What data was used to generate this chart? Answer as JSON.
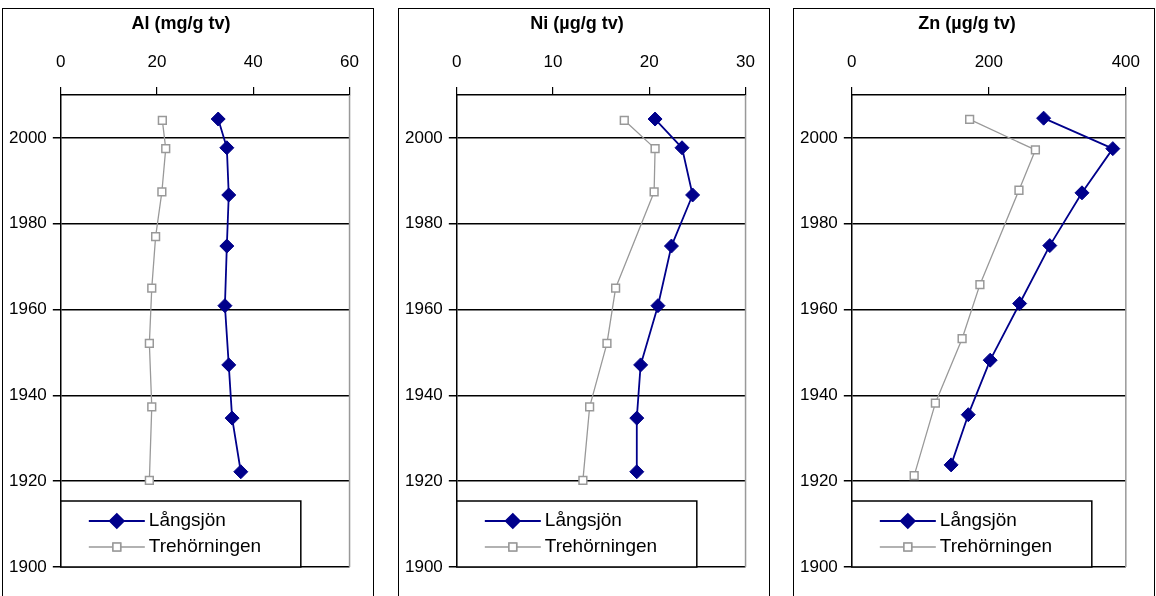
{
  "chart_data": [
    {
      "type": "line",
      "title": "Al (mg/g tv)",
      "xlim": [
        0,
        60
      ],
      "xticks": [
        0,
        20,
        40,
        60
      ],
      "ylim": [
        1900,
        2010
      ],
      "yticks": [
        1900,
        1920,
        1940,
        1960,
        1980,
        2000
      ],
      "grid": "y",
      "legend": "bottom left",
      "line_style": "solid",
      "series": [
        {
          "name": "Långsjön",
          "color": "#00008b",
          "marker": "diamond",
          "x": [
            32.7,
            34.5,
            34.9,
            34.5,
            34.1,
            34.9,
            35.6,
            37.4
          ],
          "values": [
            2004.4,
            1997.7,
            1986.7,
            1974.8,
            1960.9,
            1947.1,
            1934.7,
            1922.2
          ]
        },
        {
          "name": "Trehörningen",
          "color": "#999999",
          "marker": "square",
          "x": [
            21.1,
            21.8,
            21.0,
            19.7,
            18.9,
            18.4,
            18.9,
            18.4
          ],
          "values": [
            2004.1,
            1997.5,
            1987.4,
            1977.0,
            1965.0,
            1952.1,
            1937.3,
            1920.2
          ]
        }
      ]
    },
    {
      "type": "line",
      "title": "Ni (µg/g tv)",
      "xlim": [
        0,
        30
      ],
      "xticks": [
        0,
        10,
        20,
        30
      ],
      "ylim": [
        1900,
        2010
      ],
      "yticks": [
        1900,
        1920,
        1940,
        1960,
        1980,
        2000
      ],
      "grid": "y",
      "legend": "bottom left",
      "line_style": "solid",
      "series": [
        {
          "name": "Långsjön",
          "color": "#00008b",
          "marker": "diamond",
          "x": [
            20.6,
            23.4,
            24.5,
            22.3,
            20.9,
            19.1,
            18.7,
            18.7
          ],
          "values": [
            2004.4,
            1997.7,
            1986.7,
            1974.8,
            1960.9,
            1947.1,
            1934.7,
            1922.2
          ]
        },
        {
          "name": "Trehörningen",
          "color": "#999999",
          "marker": "square",
          "x": [
            17.4,
            20.6,
            20.5,
            16.5,
            15.6,
            13.8,
            13.1
          ],
          "values": [
            2004.1,
            1997.5,
            1987.4,
            1965.0,
            1952.1,
            1937.3,
            1920.2
          ]
        }
      ]
    },
    {
      "type": "line",
      "title": "Zn (µg/g tv)",
      "xlim": [
        0,
        400
      ],
      "xticks": [
        0,
        200,
        400
      ],
      "ylim": [
        1900,
        2010
      ],
      "yticks": [
        1900,
        1920,
        1940,
        1960,
        1980,
        2000
      ],
      "grid": "y",
      "legend": "bottom left",
      "line_style": "solid",
      "series": [
        {
          "name": "Långsjön",
          "color": "#00008b",
          "marker": "diamond",
          "x": [
            280,
            381,
            336,
            289,
            245,
            202,
            170,
            145
          ],
          "values": [
            2004.6,
            1997.5,
            1987.2,
            1974.9,
            1961.4,
            1948.2,
            1935.5,
            1923.8
          ]
        },
        {
          "name": "Trehörningen",
          "color": "#999999",
          "marker": "square",
          "x": [
            172,
            268,
            244,
            187,
            161,
            122,
            91
          ],
          "values": [
            2004.3,
            1997.2,
            1987.8,
            1965.8,
            1953.2,
            1938.2,
            1921.3
          ]
        }
      ]
    }
  ]
}
